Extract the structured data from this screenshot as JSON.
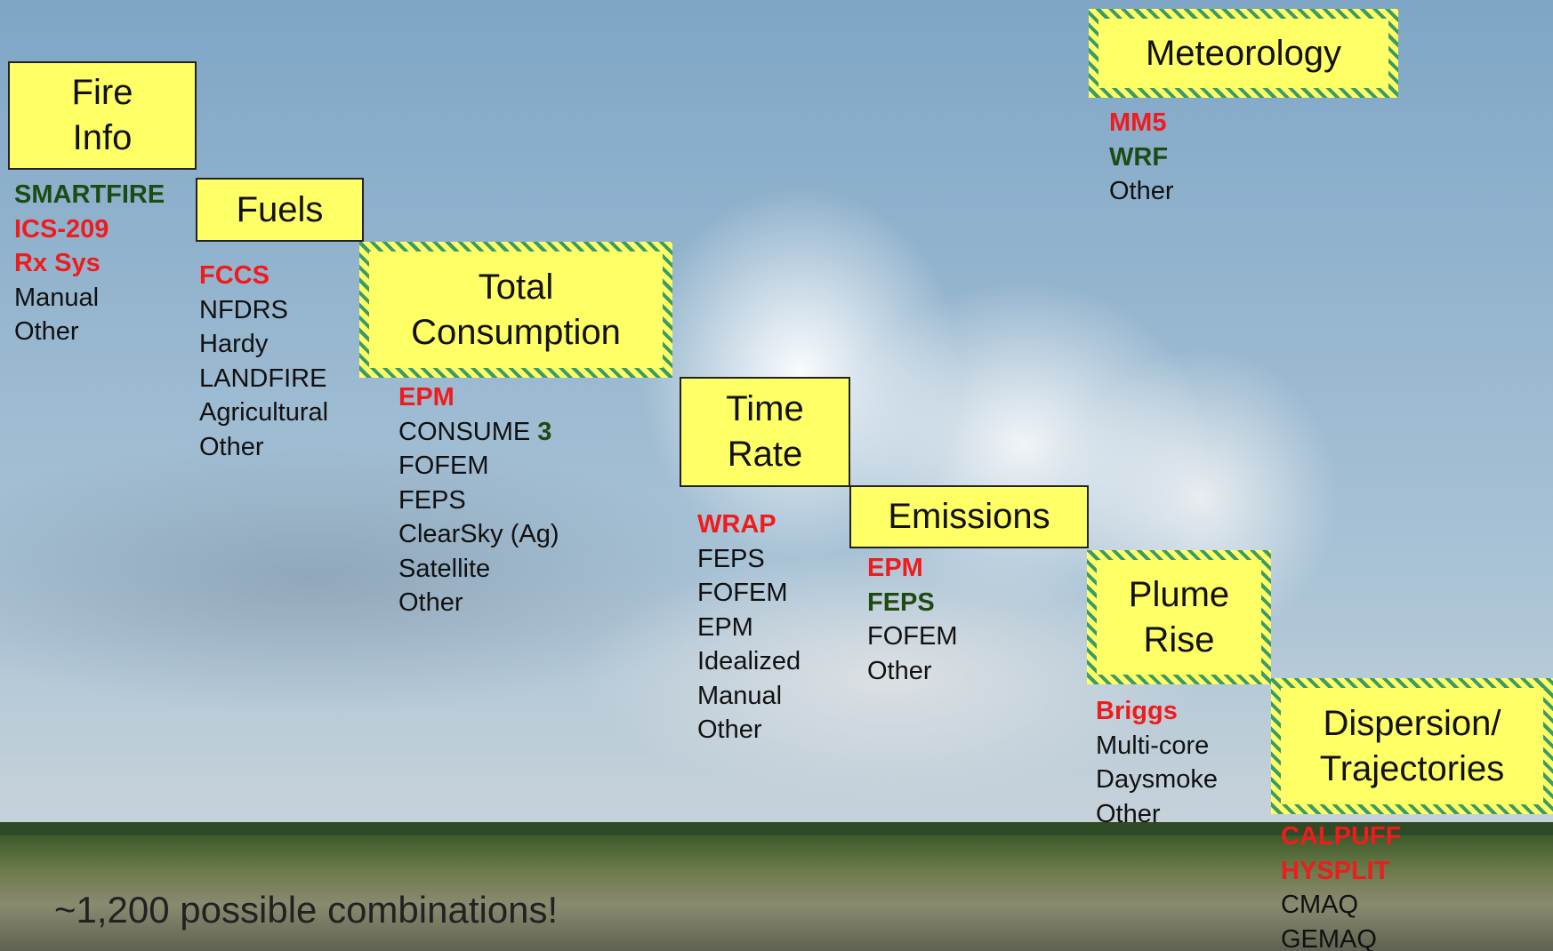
{
  "boxes": [
    {
      "title": "Fire\nInfo",
      "hatched": false,
      "items": [
        {
          "text": "SMARTFIRE",
          "color": "#1e4a14",
          "bold": true
        },
        {
          "text": "ICS-209",
          "color": "#ee1c1c",
          "bold": true
        },
        {
          "text": "Rx Sys",
          "color": "#ee1c1c",
          "bold": true
        },
        {
          "text": "Manual",
          "color": "#111111",
          "bold": false
        },
        {
          "text": "Other",
          "color": "#111111",
          "bold": false
        }
      ]
    },
    {
      "title": "Fuels",
      "hatched": false,
      "items": [
        {
          "text": "FCCS",
          "color": "#ee1c1c",
          "bold": true
        },
        {
          "text": "NFDRS",
          "color": "#111111",
          "bold": false
        },
        {
          "text": "Hardy",
          "color": "#111111",
          "bold": false
        },
        {
          "text": "LANDFIRE",
          "color": "#111111",
          "bold": false
        },
        {
          "text": "Agricultural",
          "color": "#111111",
          "bold": false
        },
        {
          "text": "Other",
          "color": "#111111",
          "bold": false
        }
      ]
    },
    {
      "title": "Total\nConsumption",
      "hatched": true,
      "items": [
        {
          "text": "EPM",
          "color": "#ee1c1c",
          "bold": true
        },
        {
          "text": "CONSUME",
          "color": "#111111",
          "bold": false,
          "extra": {
            "text": "3",
            "color": "#1e4a14",
            "bold": true
          }
        },
        {
          "text": "FOFEM",
          "color": "#111111",
          "bold": false
        },
        {
          "text": "FEPS",
          "color": "#111111",
          "bold": false
        },
        {
          "text": "ClearSky (Ag)",
          "color": "#111111",
          "bold": false
        },
        {
          "text": "Satellite",
          "color": "#111111",
          "bold": false
        },
        {
          "text": "Other",
          "color": "#111111",
          "bold": false
        }
      ]
    },
    {
      "title": "Time\nRate",
      "hatched": false,
      "items": [
        {
          "text": "WRAP",
          "color": "#ee1c1c",
          "bold": true
        },
        {
          "text": "FEPS",
          "color": "#111111",
          "bold": false
        },
        {
          "text": "FOFEM",
          "color": "#111111",
          "bold": false
        },
        {
          "text": "EPM",
          "color": "#111111",
          "bold": false
        },
        {
          "text": "Idealized",
          "color": "#111111",
          "bold": false
        },
        {
          "text": "Manual",
          "color": "#111111",
          "bold": false
        },
        {
          "text": "Other",
          "color": "#111111",
          "bold": false
        }
      ]
    },
    {
      "title": "Emissions",
      "hatched": false,
      "items": [
        {
          "text": "EPM",
          "color": "#ee1c1c",
          "bold": true
        },
        {
          "text": "FEPS",
          "color": "#1e4a14",
          "bold": true
        },
        {
          "text": "FOFEM",
          "color": "#111111",
          "bold": false
        },
        {
          "text": "Other",
          "color": "#111111",
          "bold": false
        }
      ]
    },
    {
      "title": "Plume\nRise",
      "hatched": true,
      "items": [
        {
          "text": "Briggs",
          "color": "#ee1c1c",
          "bold": true
        },
        {
          "text": "Multi-core",
          "color": "#111111",
          "bold": false
        },
        {
          "text": "Daysmoke",
          "color": "#111111",
          "bold": false
        },
        {
          "text": "Other",
          "color": "#111111",
          "bold": false
        }
      ]
    },
    {
      "title": "Dispersion/\nTrajectories",
      "hatched": true,
      "items": [
        {
          "text": "CALPUFF",
          "color": "#ee1c1c",
          "bold": true
        },
        {
          "text": "HYSPLIT",
          "color": "#ee1c1c",
          "bold": true
        },
        {
          "text": "CMAQ",
          "color": "#111111",
          "bold": false
        },
        {
          "text": "GEMAQ",
          "color": "#111111",
          "bold": false
        }
      ]
    },
    {
      "title": "Meteorology",
      "hatched": true,
      "items": [
        {
          "text": "MM5",
          "color": "#ee1c1c",
          "bold": true
        },
        {
          "text": "WRF",
          "color": "#1e4a14",
          "bold": true
        },
        {
          "text": "Other",
          "color": "#111111",
          "bold": false
        }
      ]
    }
  ],
  "footer": "~1,200 possible combinations!"
}
